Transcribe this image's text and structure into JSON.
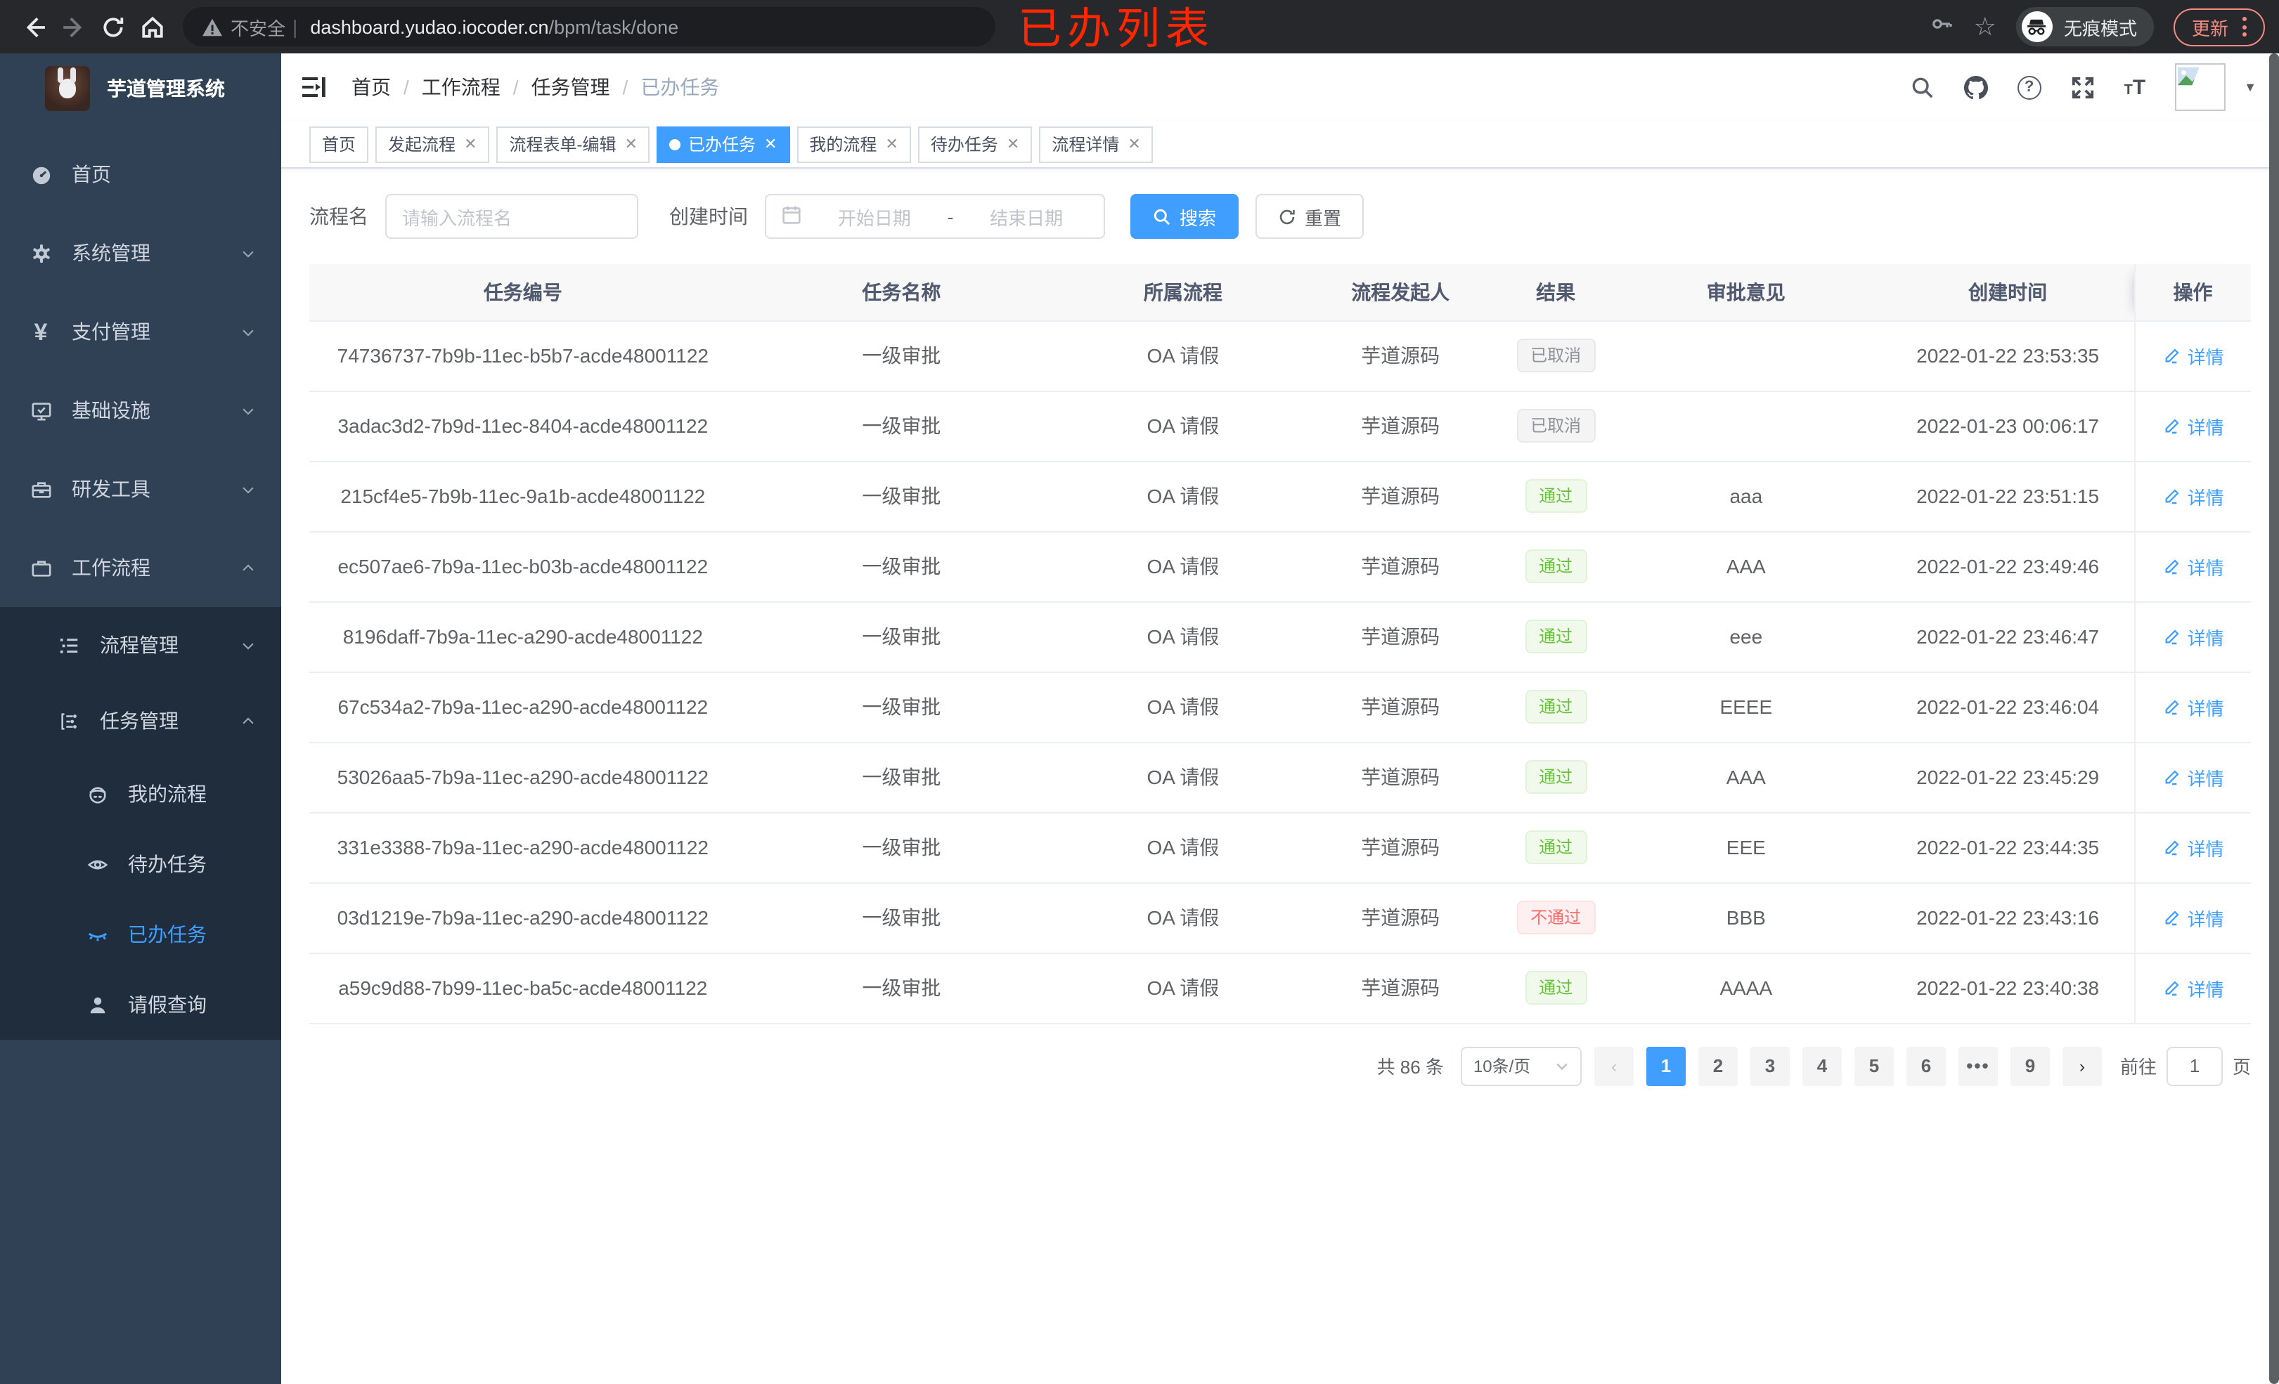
{
  "theme": {
    "accent": "#409eff",
    "sidebar_bg": "#304156",
    "submenu_bg": "#1f2d3d",
    "success": "#67c23a",
    "danger": "#f56c6c",
    "info": "#909399",
    "annotation_color": "#ff2600"
  },
  "annotation": {
    "text": "已办列表"
  },
  "browser": {
    "security_label": "不安全",
    "url_host": "dashboard.yudao.iocoder.cn",
    "url_path": "/bpm/task/done",
    "incognito_label": "无痕模式",
    "update_label": "更新"
  },
  "sidebar": {
    "logo_title": "芋道管理系统",
    "menu": [
      {
        "label": "首页",
        "icon": "dashboard-icon",
        "level": 1
      },
      {
        "label": "系统管理",
        "icon": "gear-icon",
        "level": 1,
        "chevron": "down"
      },
      {
        "label": "支付管理",
        "icon": "yen-icon",
        "level": 1,
        "chevron": "down"
      },
      {
        "label": "基础设施",
        "icon": "monitor-icon",
        "level": 1,
        "chevron": "down"
      },
      {
        "label": "研发工具",
        "icon": "toolbox-icon",
        "level": 1,
        "chevron": "down"
      },
      {
        "label": "工作流程",
        "icon": "workflow-icon",
        "level": 1,
        "chevron": "up"
      },
      {
        "label": "流程管理",
        "icon": "list-icon",
        "level": 2,
        "chevron": "down",
        "submenu": true
      },
      {
        "label": "任务管理",
        "icon": "nodes-icon",
        "level": 2,
        "chevron": "up",
        "submenu": true
      },
      {
        "label": "我的流程",
        "icon": "robot-icon",
        "level": 3,
        "submenu": true
      },
      {
        "label": "待办任务",
        "icon": "eye-open-icon",
        "level": 3,
        "submenu": true
      },
      {
        "label": "已办任务",
        "icon": "eye-closed-icon",
        "level": 3,
        "submenu": true,
        "active": true
      },
      {
        "label": "请假查询",
        "icon": "user-icon",
        "level": 3,
        "submenu": true
      }
    ]
  },
  "header": {
    "breadcrumb": [
      "首页",
      "工作流程",
      "任务管理",
      "已办任务"
    ]
  },
  "tabs": [
    {
      "label": "首页"
    },
    {
      "label": "发起流程",
      "closable": true
    },
    {
      "label": "流程表单-编辑",
      "closable": true
    },
    {
      "label": "已办任务",
      "closable": true,
      "active": true
    },
    {
      "label": "我的流程",
      "closable": true
    },
    {
      "label": "待办任务",
      "closable": true
    },
    {
      "label": "流程详情",
      "closable": true
    }
  ],
  "filters": {
    "name_label": "流程名",
    "name_placeholder": "请输入流程名",
    "date_label": "创建时间",
    "date_start_placeholder": "开始日期",
    "date_separator": "-",
    "date_end_placeholder": "结束日期",
    "search_label": "搜索",
    "reset_label": "重置"
  },
  "table": {
    "columns": [
      "任务编号",
      "任务名称",
      "所属流程",
      "流程发起人",
      "结果",
      "审批意见",
      "创建时间",
      "操作"
    ],
    "action_label": "详情",
    "rows": [
      {
        "id": "74736737-7b9b-11ec-b5b7-acde48001122",
        "name": "一级审批",
        "process": "OA 请假",
        "starter": "芋道源码",
        "result": "已取消",
        "result_type": "info",
        "opinion": "",
        "created": "2022-01-22 23:53:35"
      },
      {
        "id": "3adac3d2-7b9d-11ec-8404-acde48001122",
        "name": "一级审批",
        "process": "OA 请假",
        "starter": "芋道源码",
        "result": "已取消",
        "result_type": "info",
        "opinion": "",
        "created": "2022-01-23 00:06:17"
      },
      {
        "id": "215cf4e5-7b9b-11ec-9a1b-acde48001122",
        "name": "一级审批",
        "process": "OA 请假",
        "starter": "芋道源码",
        "result": "通过",
        "result_type": "success",
        "opinion": "aaa",
        "created": "2022-01-22 23:51:15"
      },
      {
        "id": "ec507ae6-7b9a-11ec-b03b-acde48001122",
        "name": "一级审批",
        "process": "OA 请假",
        "starter": "芋道源码",
        "result": "通过",
        "result_type": "success",
        "opinion": "AAA",
        "created": "2022-01-22 23:49:46"
      },
      {
        "id": "8196daff-7b9a-11ec-a290-acde48001122",
        "name": "一级审批",
        "process": "OA 请假",
        "starter": "芋道源码",
        "result": "通过",
        "result_type": "success",
        "opinion": "eee",
        "created": "2022-01-22 23:46:47"
      },
      {
        "id": "67c534a2-7b9a-11ec-a290-acde48001122",
        "name": "一级审批",
        "process": "OA 请假",
        "starter": "芋道源码",
        "result": "通过",
        "result_type": "success",
        "opinion": "EEEE",
        "created": "2022-01-22 23:46:04"
      },
      {
        "id": "53026aa5-7b9a-11ec-a290-acde48001122",
        "name": "一级审批",
        "process": "OA 请假",
        "starter": "芋道源码",
        "result": "通过",
        "result_type": "success",
        "opinion": "AAA",
        "created": "2022-01-22 23:45:29"
      },
      {
        "id": "331e3388-7b9a-11ec-a290-acde48001122",
        "name": "一级审批",
        "process": "OA 请假",
        "starter": "芋道源码",
        "result": "通过",
        "result_type": "success",
        "opinion": "EEE",
        "created": "2022-01-22 23:44:35"
      },
      {
        "id": "03d1219e-7b9a-11ec-a290-acde48001122",
        "name": "一级审批",
        "process": "OA 请假",
        "starter": "芋道源码",
        "result": "不通过",
        "result_type": "danger",
        "opinion": "BBB",
        "created": "2022-01-22 23:43:16"
      },
      {
        "id": "a59c9d88-7b99-11ec-ba5c-acde48001122",
        "name": "一级审批",
        "process": "OA 请假",
        "starter": "芋道源码",
        "result": "通过",
        "result_type": "success",
        "opinion": "AAAA",
        "created": "2022-01-22 23:40:38"
      }
    ]
  },
  "pagination": {
    "total_label": "共 86 条",
    "page_size_label": "10条/页",
    "pages": [
      "1",
      "2",
      "3",
      "4",
      "5",
      "6",
      "•••",
      "9"
    ],
    "active_page": "1",
    "goto_label": "前往",
    "goto_value": "1",
    "goto_suffix": "页"
  }
}
